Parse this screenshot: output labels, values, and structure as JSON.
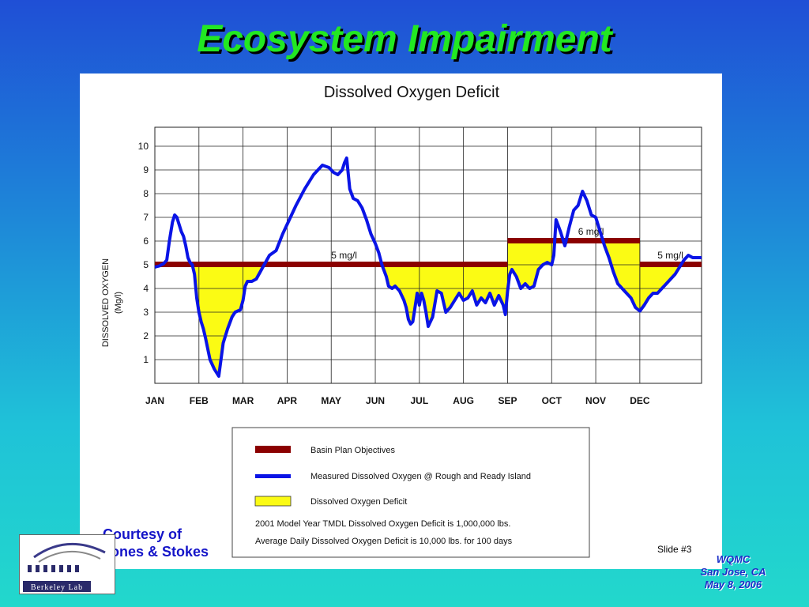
{
  "slide": {
    "title": "Ecosystem Impairment",
    "courtesy_line1": "Courtesy of",
    "courtesy_line2": "Jones & Stokes",
    "slide_number": "Slide #3",
    "footer_line1": "WQMC",
    "footer_line2": "San Jose, CA",
    "footer_line3": "May 8, 2006",
    "logo_text": "Berkeley Lab"
  },
  "legend": {
    "objectives": "Basin Plan Objectives",
    "measured": "Measured Dissolved Oxygen @ Rough and Ready Island",
    "deficit": "Dissolved Oxygen Deficit",
    "note1": "2001 Model Year TMDL Dissolved Oxygen Deficit is 1,000,000 lbs.",
    "note2": "Average Daily Dissolved Oxygen Deficit is 10,000 lbs. for 100 days"
  },
  "chart_data": {
    "type": "line",
    "title": "Dissolved Oxygen Deficit",
    "ylabel_line1": "DISSOLVED OXYGEN",
    "ylabel_line2": "(Mg/l)",
    "xlabel": "",
    "ylim": [
      0,
      10.8
    ],
    "yticks": [
      1,
      2,
      3,
      4,
      5,
      6,
      7,
      8,
      9,
      10
    ],
    "xlim": [
      0,
      12.4
    ],
    "months": [
      "JAN",
      "FEB",
      "MAR",
      "APR",
      "MAY",
      "JUN",
      "JUL",
      "AUG",
      "SEP",
      "OCT",
      "NOV",
      "DEC"
    ],
    "grid": true,
    "colors": {
      "objective": "#8b0000",
      "measured": "#0a14e6",
      "deficit": "#fbfb14"
    },
    "objective_segments": [
      {
        "x_start": 0,
        "x_end": 8,
        "value": 5,
        "label": "5 mg/l"
      },
      {
        "x_start": 8,
        "x_end": 11,
        "value": 6,
        "label": "6 mg/l"
      },
      {
        "x_start": 11,
        "x_end": 12.4,
        "value": 5,
        "label": "5 mg/l"
      }
    ],
    "series": [
      {
        "name": "Measured Dissolved Oxygen @ Rough and Ready Island",
        "x": [
          0,
          0.1,
          0.2,
          0.27,
          0.33,
          0.4,
          0.45,
          0.5,
          0.55,
          0.6,
          0.65,
          0.7,
          0.75,
          0.8,
          0.85,
          0.9,
          0.95,
          1.0,
          1.05,
          1.1,
          1.15,
          1.25,
          1.35,
          1.45,
          1.55,
          1.65,
          1.75,
          1.82,
          1.88,
          1.94,
          2.0,
          2.05,
          2.1,
          2.15,
          2.2,
          2.3,
          2.45,
          2.6,
          2.75,
          2.9,
          3.05,
          3.2,
          3.4,
          3.6,
          3.8,
          3.95,
          4.05,
          4.15,
          4.25,
          4.3,
          4.35,
          4.42,
          4.5,
          4.6,
          4.7,
          4.8,
          4.9,
          5.0,
          5.08,
          5.15,
          5.25,
          5.3,
          5.38,
          5.45,
          5.55,
          5.6,
          5.65,
          5.7,
          5.75,
          5.8,
          5.85,
          5.9,
          5.95,
          6.0,
          6.05,
          6.1,
          6.15,
          6.2,
          6.3,
          6.4,
          6.5,
          6.6,
          6.7,
          6.8,
          6.9,
          7.0,
          7.1,
          7.2,
          7.3,
          7.4,
          7.5,
          7.6,
          7.7,
          7.8,
          7.85,
          7.9,
          7.95,
          8.0,
          8.05,
          8.1,
          8.2,
          8.3,
          8.4,
          8.5,
          8.6,
          8.7,
          8.8,
          8.9,
          9.0,
          9.05,
          9.1,
          9.2,
          9.3,
          9.4,
          9.5,
          9.6,
          9.7,
          9.8,
          9.9,
          10.0,
          10.1,
          10.2,
          10.3,
          10.4,
          10.5,
          10.6,
          10.7,
          10.8,
          10.9,
          11.0,
          11.1,
          11.2,
          11.3,
          11.4,
          11.5,
          11.6,
          11.7,
          11.8,
          11.9,
          12.0,
          12.1,
          12.2,
          12.3,
          12.4
        ],
        "values": [
          4.9,
          4.95,
          5.05,
          5.2,
          6.0,
          6.8,
          7.1,
          7.0,
          6.7,
          6.4,
          6.2,
          5.8,
          5.3,
          5.1,
          5.0,
          4.6,
          3.6,
          3.0,
          2.6,
          2.3,
          1.9,
          1.0,
          0.6,
          0.3,
          1.7,
          2.3,
          2.8,
          3.0,
          3.05,
          3.1,
          3.5,
          4.1,
          4.3,
          4.3,
          4.3,
          4.4,
          4.9,
          5.4,
          5.6,
          6.3,
          6.9,
          7.5,
          8.2,
          8.8,
          9.2,
          9.1,
          8.9,
          8.8,
          9.0,
          9.3,
          9.5,
          8.2,
          7.8,
          7.7,
          7.4,
          6.9,
          6.3,
          5.9,
          5.5,
          5.0,
          4.5,
          4.1,
          4.0,
          4.1,
          3.9,
          3.7,
          3.5,
          3.2,
          2.7,
          2.5,
          2.6,
          3.2,
          3.8,
          3.3,
          3.8,
          3.5,
          3.0,
          2.4,
          2.8,
          3.9,
          3.8,
          3.0,
          3.2,
          3.5,
          3.8,
          3.5,
          3.6,
          3.9,
          3.3,
          3.6,
          3.4,
          3.8,
          3.3,
          3.7,
          3.5,
          3.3,
          2.9,
          3.9,
          4.6,
          4.8,
          4.5,
          4.0,
          4.2,
          4.0,
          4.1,
          4.8,
          5.0,
          5.1,
          5.0,
          5.4,
          6.9,
          6.4,
          5.8,
          6.6,
          7.3,
          7.5,
          8.1,
          7.7,
          7.1,
          7.0,
          6.4,
          5.8,
          5.3,
          4.7,
          4.2,
          4.0,
          3.8,
          3.6,
          3.2,
          3.05,
          3.3,
          3.6,
          3.8,
          3.8,
          4.0,
          4.2,
          4.4,
          4.6,
          4.9,
          5.2,
          5.4,
          5.3,
          5.3,
          5.3
        ]
      }
    ]
  }
}
